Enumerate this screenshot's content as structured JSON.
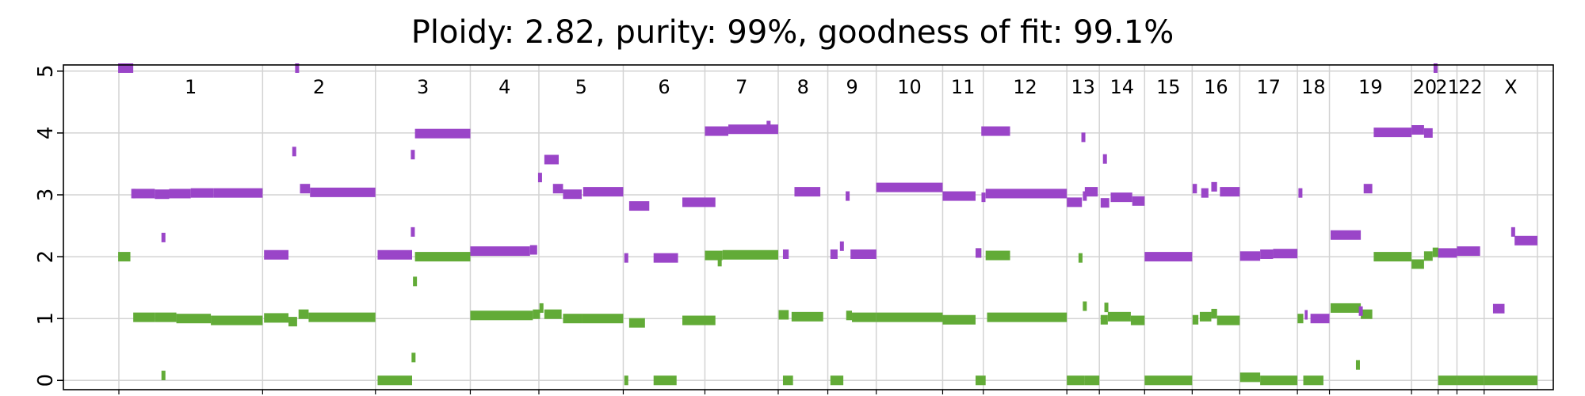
{
  "chart_data": {
    "type": "scatter",
    "title": "Ploidy: 2.82, purity: 99%, goodness of fit: 99.1%",
    "xlabel": "",
    "ylabel": "",
    "ylim": [
      -0.15,
      5.1
    ],
    "y_ticks": [
      0,
      1,
      2,
      3,
      4,
      5
    ],
    "grid": true,
    "colors": {
      "major": "#9a45c8",
      "minor": "#62ab37",
      "grid": "#d3d3d3",
      "frame": "#000000"
    },
    "chromosomes": [
      {
        "label": "1",
        "start": 0,
        "end": 1.0
      },
      {
        "label": "2",
        "start": 1.0,
        "end": 1.785
      },
      {
        "label": "3",
        "start": 1.785,
        "end": 2.445
      },
      {
        "label": "4",
        "start": 2.445,
        "end": 2.922
      },
      {
        "label": "5",
        "start": 2.922,
        "end": 3.509
      },
      {
        "label": "6",
        "start": 3.509,
        "end": 4.077
      },
      {
        "label": "7",
        "start": 4.077,
        "end": 4.587
      },
      {
        "label": "8",
        "start": 4.587,
        "end": 4.932
      },
      {
        "label": "9",
        "start": 4.932,
        "end": 5.269
      },
      {
        "label": "10",
        "start": 5.269,
        "end": 5.731
      },
      {
        "label": "11",
        "start": 5.731,
        "end": 6.014
      },
      {
        "label": "12",
        "start": 6.014,
        "end": 6.595
      },
      {
        "label": "13",
        "start": 6.595,
        "end": 6.821
      },
      {
        "label": "14",
        "start": 6.821,
        "end": 7.136
      },
      {
        "label": "15",
        "start": 7.136,
        "end": 7.467
      },
      {
        "label": "16",
        "start": 7.467,
        "end": 7.798
      },
      {
        "label": "17",
        "start": 7.798,
        "end": 8.199
      },
      {
        "label": "18",
        "start": 8.199,
        "end": 8.422
      },
      {
        "label": "19",
        "start": 8.422,
        "end": 8.993
      },
      {
        "label": "20",
        "start": 8.993,
        "end": 9.178
      },
      {
        "label": "21",
        "start": 9.178,
        "end": 9.309
      },
      {
        "label": "22",
        "start": 9.309,
        "end": 9.498
      },
      {
        "label": "X",
        "start": 9.498,
        "end": 9.869
      }
    ],
    "series": [
      {
        "name": "major",
        "segments": [
          {
            "x": [
              -0.005,
              0.1
            ],
            "y": 5.1
          },
          {
            "x": 0.1,
            "y": 3.02
          },
          {
            "x": [
              0.1,
              0.25
            ],
            "y": 3.02
          },
          {
            "x": [
              0.25,
              0.35
            ],
            "y": 3.01
          },
          {
            "x": [
              0.35,
              0.5
            ],
            "y": 3.02
          },
          {
            "x": [
              0.5,
              0.66
            ],
            "y": 3.03
          },
          {
            "x": [
              0.66,
              1.0
            ],
            "y": 3.03
          },
          {
            "x": 0.31,
            "y": 2.31
          },
          {
            "x": [
              1.01,
              1.18
            ],
            "y": 2.03
          },
          {
            "x": 1.22,
            "y": 3.7
          },
          {
            "x": 1.24,
            "y": 5.1
          },
          {
            "x": [
              1.26,
              1.33
            ],
            "y": 3.1
          },
          {
            "x": [
              1.33,
              1.785
            ],
            "y": 3.04
          },
          {
            "x": [
              1.8,
              2.04
            ],
            "y": 2.03
          },
          {
            "x": 2.045,
            "y": 3.65
          },
          {
            "x": 2.045,
            "y": 2.4
          },
          {
            "x": [
              2.06,
              2.445
            ],
            "y": 3.99
          },
          {
            "x": [
              2.445,
              2.86
            ],
            "y": 2.09
          },
          {
            "x": [
              2.86,
              2.91
            ],
            "y": 2.11
          },
          {
            "x": 2.93,
            "y": 3.28
          },
          {
            "x": [
              2.96,
              3.06
            ],
            "y": 3.57
          },
          {
            "x": [
              3.02,
              3.09
            ],
            "y": 3.1
          },
          {
            "x": [
              3.09,
              3.22
            ],
            "y": 3.01
          },
          {
            "x": [
              3.23,
              3.509
            ],
            "y": 3.05
          },
          {
            "x": 3.53,
            "y": 1.98
          },
          {
            "x": [
              3.55,
              3.69
            ],
            "y": 2.82
          },
          {
            "x": [
              3.72,
              3.89
            ],
            "y": 1.98
          },
          {
            "x": [
              3.92,
              4.15
            ],
            "y": 2.88
          },
          {
            "x": [
              4.077,
              4.24
            ],
            "y": 4.03
          },
          {
            "x": [
              4.24,
              4.587
            ],
            "y": 4.06
          },
          {
            "x": 4.52,
            "y": 4.12
          },
          {
            "x": [
              4.62,
              4.66
            ],
            "y": 2.04
          },
          {
            "x": [
              4.7,
              4.88
            ],
            "y": 3.05
          },
          {
            "x": [
              4.95,
              5.0
            ],
            "y": 2.04
          },
          {
            "x": 5.03,
            "y": 2.17
          },
          {
            "x": 5.07,
            "y": 2.98
          },
          {
            "x": [
              5.09,
              5.27
            ],
            "y": 2.04
          },
          {
            "x": [
              5.269,
              5.731
            ],
            "y": 3.12
          },
          {
            "x": [
              5.731,
              5.96
            ],
            "y": 2.98
          },
          {
            "x": [
              5.96,
              6.0
            ],
            "y": 2.06
          },
          {
            "x": [
              6.0,
              6.2
            ],
            "y": 4.03
          },
          {
            "x": 6.015,
            "y": 2.96
          },
          {
            "x": [
              6.03,
              6.595
            ],
            "y": 3.02
          },
          {
            "x": [
              6.595,
              6.7
            ],
            "y": 2.88
          },
          {
            "x": 6.71,
            "y": 3.93
          },
          {
            "x": [
              6.72,
              6.81
            ],
            "y": 3.05
          },
          {
            "x": 6.72,
            "y": 2.98
          },
          {
            "x": [
              6.83,
              6.89
            ],
            "y": 2.87
          },
          {
            "x": 6.86,
            "y": 3.58
          },
          {
            "x": [
              6.9,
              7.05
            ],
            "y": 2.96
          },
          {
            "x": [
              7.05,
              7.136
            ],
            "y": 2.9
          },
          {
            "x": [
              7.136,
              7.467
            ],
            "y": 2.0
          },
          {
            "x": [
              7.47,
              7.5
            ],
            "y": 3.1
          },
          {
            "x": [
              7.53,
              7.58
            ],
            "y": 3.03
          },
          {
            "x": [
              7.6,
              7.64
            ],
            "y": 3.13
          },
          {
            "x": [
              7.66,
              7.798
            ],
            "y": 3.05
          },
          {
            "x": [
              7.8,
              7.94
            ],
            "y": 2.01
          },
          {
            "x": [
              7.94,
              8.03
            ],
            "y": 2.04
          },
          {
            "x": [
              8.03,
              8.199
            ],
            "y": 2.05
          },
          {
            "x": 8.22,
            "y": 3.03
          },
          {
            "x": [
              8.25,
              8.27
            ],
            "y": 1.06
          },
          {
            "x": [
              8.29,
              8.422
            ],
            "y": 1.0
          },
          {
            "x": [
              8.43,
              8.64
            ],
            "y": 2.35
          },
          {
            "x": [
              8.66,
              8.72
            ],
            "y": 3.1
          },
          {
            "x": 8.64,
            "y": 1.12
          },
          {
            "x": [
              8.73,
              8.993
            ],
            "y": 4.01
          },
          {
            "x": [
              8.993,
              9.08
            ],
            "y": 4.05
          },
          {
            "x": [
              9.08,
              9.14
            ],
            "y": 4.0
          },
          {
            "x": 9.16,
            "y": 5.12
          },
          {
            "x": [
              9.178,
              9.309
            ],
            "y": 2.06
          },
          {
            "x": [
              9.309,
              9.47
            ],
            "y": 2.09
          },
          {
            "x": [
              9.56,
              9.64
            ],
            "y": 1.16
          },
          {
            "x": 9.7,
            "y": 2.4
          },
          {
            "x": [
              9.71,
              9.869
            ],
            "y": 2.26
          }
        ]
      },
      {
        "name": "minor",
        "segments": [
          {
            "x": [
              -0.005,
              0.08
            ],
            "y": 2.0
          },
          {
            "x": 0.31,
            "y": 0.08
          },
          {
            "x": [
              0.1,
              0.25
            ],
            "y": 1.02
          },
          {
            "x": [
              0.25,
              0.4
            ],
            "y": 1.02
          },
          {
            "x": [
              0.4,
              0.64
            ],
            "y": 1.0
          },
          {
            "x": [
              0.64,
              1.0
            ],
            "y": 0.97
          },
          {
            "x": [
              1.01,
              1.18
            ],
            "y": 1.01
          },
          {
            "x": [
              1.18,
              1.24
            ],
            "y": 0.95
          },
          {
            "x": [
              1.25,
              1.32
            ],
            "y": 1.07
          },
          {
            "x": [
              1.32,
              1.785
            ],
            "y": 1.02
          },
          {
            "x": [
              1.8,
              2.04
            ],
            "y": 0.0
          },
          {
            "x": 2.05,
            "y": 0.37
          },
          {
            "x": 2.06,
            "y": 1.6
          },
          {
            "x": [
              2.06,
              2.445
            ],
            "y": 2.0
          },
          {
            "x": [
              2.445,
              2.88
            ],
            "y": 1.05
          },
          {
            "x": [
              2.88,
              2.93
            ],
            "y": 1.07
          },
          {
            "x": 2.94,
            "y": 1.17
          },
          {
            "x": [
              2.96,
              3.08
            ],
            "y": 1.07
          },
          {
            "x": [
              3.09,
              3.22
            ],
            "y": 1.0
          },
          {
            "x": [
              3.22,
              3.509
            ],
            "y": 1.0
          },
          {
            "x": 3.53,
            "y": 0.0
          },
          {
            "x": [
              3.55,
              3.66
            ],
            "y": 0.93
          },
          {
            "x": [
              3.72,
              3.88
            ],
            "y": 0.0
          },
          {
            "x": [
              3.92,
              4.15
            ],
            "y": 0.97
          },
          {
            "x": [
              4.077,
              4.2
            ],
            "y": 2.02
          },
          {
            "x": 4.18,
            "y": 1.92
          },
          {
            "x": [
              4.2,
              4.587
            ],
            "y": 2.03
          },
          {
            "x": [
              4.59,
              4.66
            ],
            "y": 1.06
          },
          {
            "x": [
              4.68,
              4.9
            ],
            "y": 1.03
          },
          {
            "x": [
              4.62,
              4.69
            ],
            "y": 0.0
          },
          {
            "x": [
              4.95,
              5.04
            ],
            "y": 0.0
          },
          {
            "x": [
              5.06,
              5.1
            ],
            "y": 1.05
          },
          {
            "x": [
              5.1,
              5.269
            ],
            "y": 1.02
          },
          {
            "x": [
              5.269,
              5.731
            ],
            "y": 1.02
          },
          {
            "x": [
              5.731,
              5.96
            ],
            "y": 0.98
          },
          {
            "x": [
              5.96,
              6.03
            ],
            "y": 0.0
          },
          {
            "x": [
              5.96,
              6.0
            ],
            "y": 2.06
          },
          {
            "x": [
              6.03,
              6.2
            ],
            "y": 2.02
          },
          {
            "x": [
              6.04,
              6.595
            ],
            "y": 1.02
          },
          {
            "x": 6.69,
            "y": 1.98
          },
          {
            "x": 6.72,
            "y": 1.2
          },
          {
            "x": [
              6.595,
              6.72
            ],
            "y": 0.0
          },
          {
            "x": [
              6.72,
              6.821
            ],
            "y": 0.0
          },
          {
            "x": [
              6.83,
              6.88
            ],
            "y": 0.98
          },
          {
            "x": 6.87,
            "y": 1.18
          },
          {
            "x": [
              6.88,
              7.04
            ],
            "y": 1.03
          },
          {
            "x": [
              7.04,
              7.136
            ],
            "y": 0.97
          },
          {
            "x": [
              7.136,
              7.467
            ],
            "y": 0.0
          },
          {
            "x": [
              7.47,
              7.51
            ],
            "y": 0.98
          },
          {
            "x": [
              7.52,
              7.6
            ],
            "y": 1.03
          },
          {
            "x": [
              7.6,
              7.64
            ],
            "y": 1.08
          },
          {
            "x": [
              7.64,
              7.798
            ],
            "y": 0.97
          },
          {
            "x": [
              7.8,
              7.94
            ],
            "y": 0.05
          },
          {
            "x": [
              7.94,
              8.199
            ],
            "y": 0.0
          },
          {
            "x": [
              8.2,
              8.24
            ],
            "y": 1.0
          },
          {
            "x": [
              8.24,
              8.38
            ],
            "y": 0.0
          },
          {
            "x": [
              8.43,
              8.64
            ],
            "y": 1.17
          },
          {
            "x": 8.62,
            "y": 0.25
          },
          {
            "x": [
              8.64,
              8.72
            ],
            "y": 1.07
          },
          {
            "x": [
              8.73,
              8.993
            ],
            "y": 2.0
          },
          {
            "x": [
              8.993,
              9.08
            ],
            "y": 1.88
          },
          {
            "x": [
              9.08,
              9.14
            ],
            "y": 2.01
          },
          {
            "x": [
              9.14,
              9.18
            ],
            "y": 2.07
          },
          {
            "x": [
              9.178,
              9.309
            ],
            "y": 0.0
          },
          {
            "x": [
              9.309,
              9.498
            ],
            "y": 0.0
          },
          {
            "x": [
              9.498,
              9.869
            ],
            "y": 0.0
          }
        ]
      }
    ]
  }
}
